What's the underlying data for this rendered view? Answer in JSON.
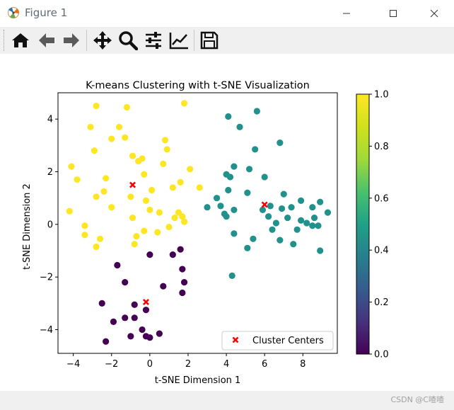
{
  "window": {
    "title": "Figure 1",
    "controls": [
      "minimize-icon",
      "maximize-icon",
      "close-icon"
    ]
  },
  "toolbar": {
    "buttons": [
      {
        "name": "home",
        "icon": "home-icon"
      },
      {
        "name": "back",
        "icon": "arrow-left-icon"
      },
      {
        "name": "forward",
        "icon": "arrow-right-icon"
      },
      {
        "name": "pan",
        "icon": "move-icon"
      },
      {
        "name": "zoom",
        "icon": "magnifier-icon"
      },
      {
        "name": "configure-subplots",
        "icon": "sliders-icon"
      },
      {
        "name": "edit-axis",
        "icon": "line-chart-icon"
      },
      {
        "name": "save",
        "icon": "floppy-disk-icon"
      }
    ]
  },
  "status": {
    "watermark": "CSDN @C喳喳"
  },
  "chart_data": {
    "type": "scatter",
    "title": "K-means Clustering with t-SNE Visualization",
    "xlabel": "t-SNE Dimension 1",
    "ylabel": "t-SNE Dimension 2",
    "xlim": [
      -4.8,
      9.8
    ],
    "ylim": [
      -4.9,
      5.0
    ],
    "xticks": [
      -4,
      -2,
      0,
      2,
      4,
      6,
      8
    ],
    "yticks": [
      -4,
      -2,
      0,
      2,
      4
    ],
    "tick_labels_x": [
      "−4",
      "−2",
      "0",
      "2",
      "4",
      "6",
      "8"
    ],
    "tick_labels_y": [
      "−4",
      "−2",
      "0",
      "2",
      "4"
    ],
    "colormap": "viridis",
    "colorbar": {
      "range": [
        0.0,
        1.0
      ],
      "ticks": [
        0.0,
        0.2,
        0.4,
        0.6,
        0.8,
        1.0
      ],
      "tick_labels": [
        "0.0",
        "0.2",
        "0.4",
        "0.6",
        "0.8",
        "1.0"
      ]
    },
    "legend": {
      "placement": "lower-right",
      "entries": [
        "Cluster Centers"
      ]
    },
    "cluster_colors": {
      "0": "#440154",
      "1": "#21918c",
      "2": "#fde725"
    },
    "center_color": "#ff0000",
    "series": [
      {
        "cluster": 0,
        "points": [
          [
            -2.5,
            -3.0
          ],
          [
            -2.3,
            -4.45
          ],
          [
            -1.9,
            -3.7
          ],
          [
            -1.7,
            -1.55
          ],
          [
            -1.3,
            -2.2
          ],
          [
            -1.3,
            -3.55
          ],
          [
            -1.0,
            -4.25
          ],
          [
            -0.8,
            -3.05
          ],
          [
            -0.8,
            -3.55
          ],
          [
            -0.4,
            -4.0
          ],
          [
            -0.2,
            -3.25
          ],
          [
            -0.2,
            -4.25
          ],
          [
            0.0,
            -4.3
          ],
          [
            0.0,
            -1.15
          ],
          [
            0.5,
            -4.15
          ],
          [
            0.7,
            -2.35
          ],
          [
            1.2,
            -1.15
          ],
          [
            1.6,
            -0.95
          ],
          [
            1.7,
            -1.7
          ],
          [
            1.7,
            -2.6
          ],
          [
            1.8,
            -2.2
          ]
        ]
      },
      {
        "cluster": 1,
        "points": [
          [
            3.0,
            0.65
          ],
          [
            3.5,
            1.0
          ],
          [
            3.7,
            0.7
          ],
          [
            3.9,
            0.4
          ],
          [
            4.0,
            0.3
          ],
          [
            4.0,
            1.9
          ],
          [
            4.1,
            1.3
          ],
          [
            4.1,
            4.1
          ],
          [
            4.2,
            1.8
          ],
          [
            4.3,
            -1.95
          ],
          [
            4.4,
            2.2
          ],
          [
            4.4,
            -0.35
          ],
          [
            4.4,
            0.55
          ],
          [
            4.7,
            3.7
          ],
          [
            5.1,
            1.2
          ],
          [
            5.1,
            -0.9
          ],
          [
            5.2,
            2.1
          ],
          [
            5.4,
            -0.55
          ],
          [
            5.5,
            2.85
          ],
          [
            5.6,
            4.3
          ],
          [
            5.9,
            0.55
          ],
          [
            6.0,
            1.8
          ],
          [
            6.2,
            0.3
          ],
          [
            6.3,
            0.7
          ],
          [
            6.4,
            -0.2
          ],
          [
            6.6,
            0.05
          ],
          [
            6.8,
            -0.6
          ],
          [
            6.8,
            3.1
          ],
          [
            6.9,
            0.6
          ],
          [
            7.0,
            1.15
          ],
          [
            7.2,
            0.25
          ],
          [
            7.4,
            0.65
          ],
          [
            7.5,
            -0.75
          ],
          [
            7.7,
            -0.2
          ],
          [
            7.9,
            0.15
          ],
          [
            7.9,
            0.9
          ],
          [
            8.2,
            0.05
          ],
          [
            8.5,
            0.65
          ],
          [
            8.5,
            -0.05
          ],
          [
            8.6,
            0.25
          ],
          [
            8.8,
            -0.05
          ],
          [
            8.9,
            0.85
          ],
          [
            8.9,
            -1.0
          ],
          [
            9.3,
            0.45
          ]
        ]
      },
      {
        "cluster": 2,
        "points": [
          [
            -4.2,
            0.5
          ],
          [
            -4.1,
            2.2
          ],
          [
            -3.8,
            1.7
          ],
          [
            -3.4,
            -0.05
          ],
          [
            -3.4,
            -0.4
          ],
          [
            -3.1,
            3.7
          ],
          [
            -2.9,
            2.8
          ],
          [
            -2.8,
            4.5
          ],
          [
            -2.8,
            1.05
          ],
          [
            -2.8,
            -0.85
          ],
          [
            -2.6,
            -0.55
          ],
          [
            -2.4,
            1.25
          ],
          [
            -2.3,
            1.75
          ],
          [
            -2.0,
            0.65
          ],
          [
            -2.0,
            3.25
          ],
          [
            -1.6,
            3.7
          ],
          [
            -1.3,
            3.3
          ],
          [
            -1.2,
            4.45
          ],
          [
            -1.0,
            1.05
          ],
          [
            -0.9,
            0.25
          ],
          [
            -0.9,
            2.6
          ],
          [
            -0.8,
            -0.75
          ],
          [
            -0.7,
            -0.45
          ],
          [
            -0.6,
            2.4
          ],
          [
            -0.4,
            2.5
          ],
          [
            -0.3,
            1.9
          ],
          [
            -0.3,
            -0.25
          ],
          [
            -0.2,
            0.9
          ],
          [
            0.0,
            0.55
          ],
          [
            0.1,
            1.3
          ],
          [
            0.4,
            -0.3
          ],
          [
            0.5,
            0.45
          ],
          [
            0.7,
            2.3
          ],
          [
            0.8,
            3.2
          ],
          [
            0.9,
            2.85
          ],
          [
            1.0,
            -0.1
          ],
          [
            1.2,
            1.4
          ],
          [
            1.3,
            0.25
          ],
          [
            1.5,
            0.45
          ],
          [
            1.6,
            1.6
          ],
          [
            1.7,
            0.3
          ],
          [
            1.8,
            4.6
          ],
          [
            1.8,
            0.1
          ],
          [
            2.1,
            2.1
          ],
          [
            2.6,
            1.4
          ]
        ]
      }
    ],
    "centers": [
      [
        -0.9,
        1.5
      ],
      [
        -0.2,
        -2.95
      ],
      [
        6.0,
        0.75
      ]
    ]
  }
}
